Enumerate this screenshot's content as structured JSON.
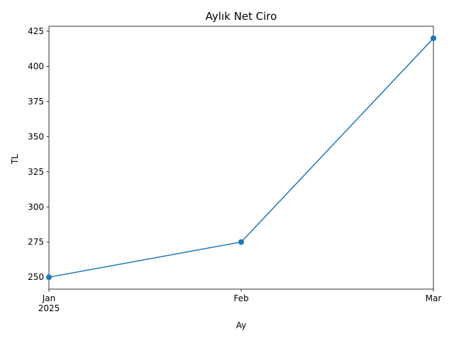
{
  "chart_data": {
    "type": "line",
    "title": "Aylık Net Ciro",
    "xlabel": "Ay",
    "ylabel": "TL",
    "x": [
      "2025-01",
      "2025-02",
      "2025-03"
    ],
    "x_tick_labels": [
      "Jan",
      "Feb",
      "Mar"
    ],
    "x_tick_sublabel": "2025",
    "series": [
      {
        "values": [
          250,
          275,
          420
        ],
        "color": "#1f77b4",
        "marker": "circle"
      }
    ],
    "ylim": [
      241.5,
      428.5
    ],
    "y_ticks": [
      250,
      275,
      300,
      325,
      350,
      375,
      400,
      425
    ],
    "grid": false,
    "legend": "none"
  }
}
